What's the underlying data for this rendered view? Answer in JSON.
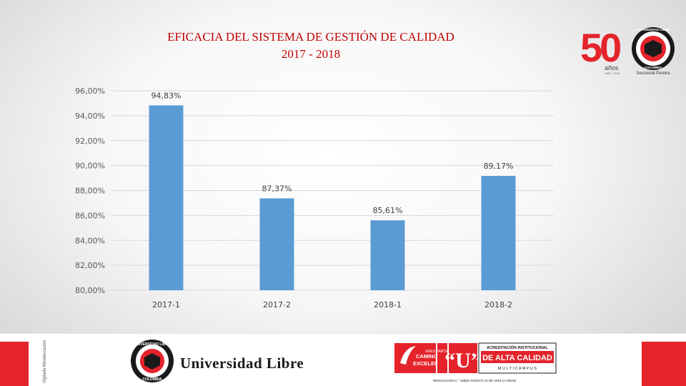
{
  "title": {
    "line1": "EFICACIA DEL SISTEMA DE GESTIÓN DE CALIDAD",
    "line2": "2017 - 2018"
  },
  "colors": {
    "bar": "#5b9bd5",
    "title": "#c00000",
    "brand_red": "#e4232b",
    "grid": "#d9d9d9"
  },
  "chart_data": {
    "type": "bar",
    "title": "EFICACIA DEL SISTEMA DE GESTIÓN DE CALIDAD 2017 - 2018",
    "categories": [
      "2017-1",
      "2017-2",
      "2018-1",
      "2018-2"
    ],
    "values": [
      94.83,
      87.37,
      85.61,
      89.17
    ],
    "value_labels": [
      "94,83%",
      "87,37%",
      "85,61%",
      "89,17%"
    ],
    "ylim": [
      80,
      96
    ],
    "yticks": [
      80,
      82,
      84,
      86,
      88,
      90,
      92,
      94,
      96
    ],
    "ytick_labels": [
      "80,00%",
      "82,00%",
      "84,00%",
      "86,00%",
      "88,00%",
      "90,00%",
      "92,00%",
      "94,00%",
      "96,00%"
    ],
    "grid": true,
    "legend": "none"
  },
  "logo_50": {
    "number": "50",
    "sub": "años",
    "years": "1969 - 2019",
    "seal_top": "UNIVERSIDAD LIBRE",
    "seal_bottom": "COLOMBIA",
    "campus": "Seccional Pereira"
  },
  "footer": {
    "vigilada": "Vigilada Mineducación",
    "university_name": "Universidad Libre",
    "seal_top": "UNIVERSIDAD LIBRE",
    "seal_bottom": "COLOMBIA",
    "camino_line1": "CAMINO A LA",
    "camino_line2": "EXCELENCIA",
    "eres": "ERES\nPARTE\nDE LA",
    "u": "“U”",
    "acred_small": "ACREDITACIÓN INSTITUCIONAL",
    "acred_big": "DE ALTA CALIDAD",
    "multicampus": "M U L T I C A M P U S",
    "resolucion": "RESOLUCIÓN n.° 16892 AGOSTO 22 DE 2016 (4 AÑOS)"
  }
}
